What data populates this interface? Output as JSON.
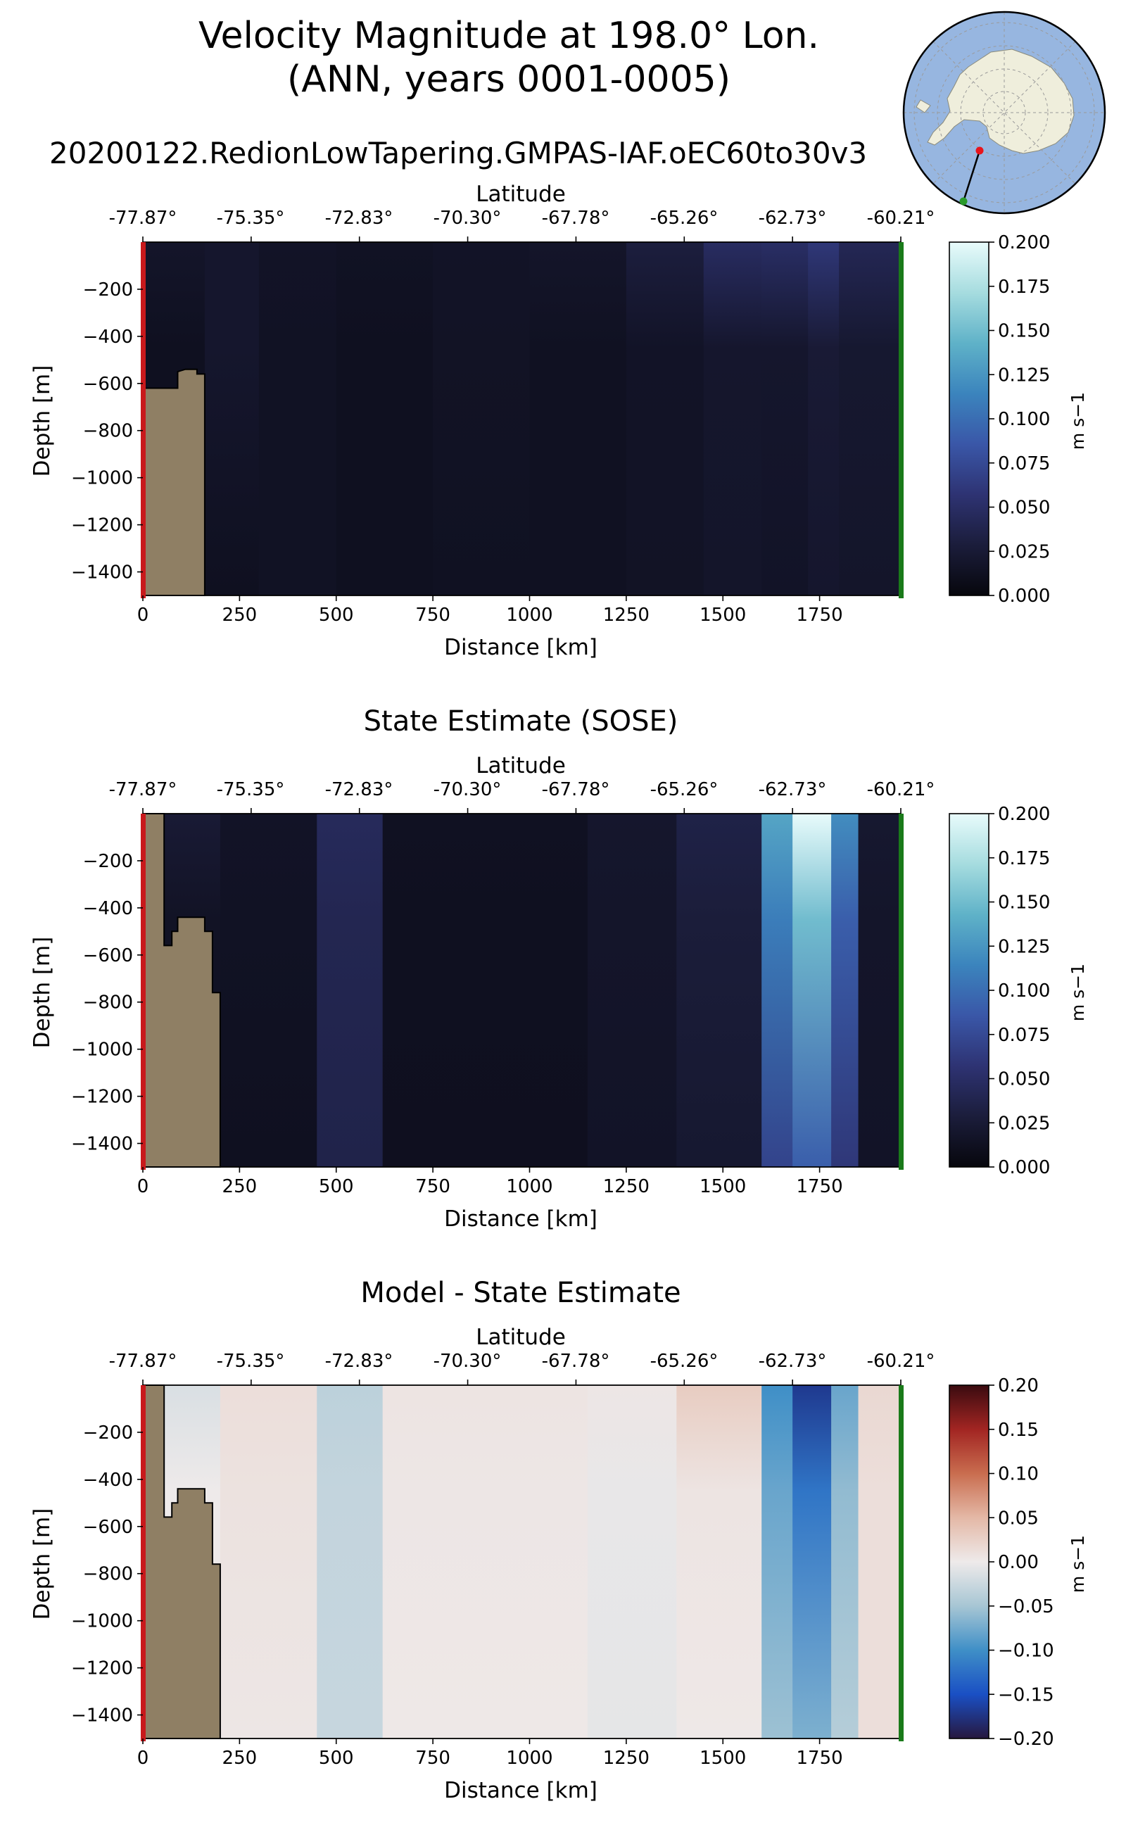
{
  "figure": {
    "title_line1": "Velocity Magnitude at 198.0° Lon.",
    "title_line2": "(ANN, years 0001-0005)",
    "run_name": "20200122.RedionLowTapering.GMPAS-IAF.oEC60to30v3",
    "inset_map": "antarctica-polar-stereographic-map-with-transect"
  },
  "colors": {
    "land": "#8f7f64",
    "start_marker": "#c8191c",
    "end_marker": "#1a7a1a",
    "cmap_velocity": [
      "#07070d",
      "#1b1d3b",
      "#2e3373",
      "#3a57a8",
      "#3b84bd",
      "#5fb2c8",
      "#a6dcdf",
      "#e8fbfb"
    ],
    "cmap_diff": [
      "#27183f",
      "#1a4fc4",
      "#3f8fc7",
      "#a7c6d4",
      "#eeeaea",
      "#e4b8a6",
      "#c96d4f",
      "#a22522",
      "#3a0b10"
    ]
  },
  "chart_data": [
    {
      "type": "heatmap",
      "id": "model",
      "title": "",
      "top_axis_label": "Latitude",
      "lat_ticks": [
        "-77.87°",
        "-75.35°",
        "-72.83°",
        "-70.30°",
        "-67.78°",
        "-65.26°",
        "-62.73°",
        "-60.21°"
      ],
      "lat_tick_distance_km": [
        0,
        280,
        560,
        840,
        1120,
        1400,
        1680,
        1960
      ],
      "xlabel": "Distance [km]",
      "ylabel": "Depth [m]",
      "xlim": [
        0,
        1960
      ],
      "ylim": [
        -1500,
        0
      ],
      "x_ticks": [
        0,
        250,
        500,
        750,
        1000,
        1250,
        1500,
        1750
      ],
      "y_ticks": [
        -200,
        -400,
        -600,
        -800,
        -1000,
        -1200,
        -1400
      ],
      "y_tick_labels": [
        "−200",
        "−400",
        "−600",
        "−800",
        "−1000",
        "−1200",
        "−1400"
      ],
      "colorbar": {
        "min": 0.0,
        "max": 0.2,
        "label": "m s−1",
        "ticks": [
          "0.000",
          "0.025",
          "0.050",
          "0.075",
          "0.100",
          "0.125",
          "0.150",
          "0.175",
          "0.200"
        ],
        "cmap": "velocity"
      },
      "land": [
        [
          0,
          -620
        ],
        [
          90,
          -620
        ],
        [
          90,
          -550
        ],
        [
          110,
          -540
        ],
        [
          140,
          -540
        ],
        [
          140,
          -560
        ],
        [
          160,
          -560
        ],
        [
          160,
          -1500
        ],
        [
          0,
          -1500
        ]
      ],
      "field": [
        {
          "x0": 0,
          "x1": 160,
          "v": 0.012,
          "surf": 0.018,
          "deep": 0.01
        },
        {
          "x0": 160,
          "x1": 300,
          "v": 0.02,
          "surf": 0.02,
          "deep": 0.012
        },
        {
          "x0": 300,
          "x1": 500,
          "v": 0.014,
          "surf": 0.016,
          "deep": 0.014
        },
        {
          "x0": 500,
          "x1": 750,
          "v": 0.012,
          "surf": 0.014,
          "deep": 0.012
        },
        {
          "x0": 750,
          "x1": 1000,
          "v": 0.015,
          "surf": 0.016,
          "deep": 0.013
        },
        {
          "x0": 1000,
          "x1": 1250,
          "v": 0.013,
          "surf": 0.018,
          "deep": 0.013
        },
        {
          "x0": 1250,
          "x1": 1450,
          "v": 0.016,
          "surf": 0.03,
          "deep": 0.015
        },
        {
          "x0": 1450,
          "x1": 1600,
          "v": 0.02,
          "surf": 0.048,
          "deep": 0.018
        },
        {
          "x0": 1600,
          "x1": 1720,
          "v": 0.02,
          "surf": 0.05,
          "deep": 0.016
        },
        {
          "x0": 1720,
          "x1": 1800,
          "v": 0.025,
          "surf": 0.06,
          "deep": 0.02
        },
        {
          "x0": 1800,
          "x1": 1960,
          "v": 0.022,
          "surf": 0.042,
          "deep": 0.018
        }
      ]
    },
    {
      "type": "heatmap",
      "id": "sose",
      "title": "State Estimate (SOSE)",
      "top_axis_label": "Latitude",
      "lat_ticks": [
        "-77.87°",
        "-75.35°",
        "-72.83°",
        "-70.30°",
        "-67.78°",
        "-65.26°",
        "-62.73°",
        "-60.21°"
      ],
      "lat_tick_distance_km": [
        0,
        280,
        560,
        840,
        1120,
        1400,
        1680,
        1960
      ],
      "xlabel": "Distance [km]",
      "ylabel": "Depth [m]",
      "xlim": [
        0,
        1960
      ],
      "ylim": [
        -1500,
        0
      ],
      "x_ticks": [
        0,
        250,
        500,
        750,
        1000,
        1250,
        1500,
        1750
      ],
      "y_ticks": [
        -200,
        -400,
        -600,
        -800,
        -1000,
        -1200,
        -1400
      ],
      "y_tick_labels": [
        "−200",
        "−400",
        "−600",
        "−800",
        "−1000",
        "−1200",
        "−1400"
      ],
      "colorbar": {
        "min": 0.0,
        "max": 0.2,
        "label": "m s−1",
        "ticks": [
          "0.000",
          "0.025",
          "0.050",
          "0.075",
          "0.100",
          "0.125",
          "0.150",
          "0.175",
          "0.200"
        ],
        "cmap": "velocity"
      },
      "land": [
        [
          0,
          0
        ],
        [
          55,
          0
        ],
        [
          55,
          -560
        ],
        [
          75,
          -560
        ],
        [
          75,
          -500
        ],
        [
          90,
          -500
        ],
        [
          90,
          -440
        ],
        [
          160,
          -440
        ],
        [
          160,
          -500
        ],
        [
          180,
          -500
        ],
        [
          180,
          -760
        ],
        [
          200,
          -760
        ],
        [
          200,
          -1500
        ],
        [
          0,
          -1500
        ]
      ],
      "field": [
        {
          "x0": 0,
          "x1": 200,
          "v": 0.015,
          "surf": 0.025,
          "deep": 0.012
        },
        {
          "x0": 200,
          "x1": 450,
          "v": 0.014,
          "surf": 0.016,
          "deep": 0.012
        },
        {
          "x0": 450,
          "x1": 620,
          "v": 0.04,
          "surf": 0.045,
          "deep": 0.036
        },
        {
          "x0": 620,
          "x1": 1150,
          "v": 0.012,
          "surf": 0.013,
          "deep": 0.011
        },
        {
          "x0": 1150,
          "x1": 1380,
          "v": 0.018,
          "surf": 0.02,
          "deep": 0.016
        },
        {
          "x0": 1380,
          "x1": 1600,
          "v": 0.028,
          "surf": 0.035,
          "deep": 0.022
        },
        {
          "x0": 1600,
          "x1": 1680,
          "v": 0.11,
          "surf": 0.135,
          "deep": 0.07
        },
        {
          "x0": 1680,
          "x1": 1780,
          "v": 0.15,
          "surf": 0.2,
          "deep": 0.09
        },
        {
          "x0": 1780,
          "x1": 1850,
          "v": 0.09,
          "surf": 0.12,
          "deep": 0.06
        },
        {
          "x0": 1850,
          "x1": 1960,
          "v": 0.018,
          "surf": 0.022,
          "deep": 0.016
        }
      ]
    },
    {
      "type": "heatmap",
      "id": "diff",
      "title": "Model - State Estimate",
      "top_axis_label": "Latitude",
      "lat_ticks": [
        "-77.87°",
        "-75.35°",
        "-72.83°",
        "-70.30°",
        "-67.78°",
        "-65.26°",
        "-62.73°",
        "-60.21°"
      ],
      "lat_tick_distance_km": [
        0,
        280,
        560,
        840,
        1120,
        1400,
        1680,
        1960
      ],
      "xlabel": "Distance [km]",
      "ylabel": "Depth [m]",
      "xlim": [
        0,
        1960
      ],
      "ylim": [
        -1500,
        0
      ],
      "x_ticks": [
        0,
        250,
        500,
        750,
        1000,
        1250,
        1500,
        1750
      ],
      "y_ticks": [
        -200,
        -400,
        -600,
        -800,
        -1000,
        -1200,
        -1400
      ],
      "y_tick_labels": [
        "−200",
        "−400",
        "−600",
        "−800",
        "−1000",
        "−1200",
        "−1400"
      ],
      "colorbar": {
        "min": -0.2,
        "max": 0.2,
        "label": "m s−1",
        "ticks": [
          "−0.20",
          "−0.15",
          "−0.10",
          "−0.05",
          "0.00",
          "0.05",
          "0.10",
          "0.15",
          "0.20"
        ],
        "cmap": "diff"
      },
      "land": [
        [
          0,
          0
        ],
        [
          55,
          0
        ],
        [
          55,
          -560
        ],
        [
          75,
          -560
        ],
        [
          75,
          -500
        ],
        [
          90,
          -500
        ],
        [
          90,
          -440
        ],
        [
          160,
          -440
        ],
        [
          160,
          -500
        ],
        [
          180,
          -500
        ],
        [
          180,
          -760
        ],
        [
          200,
          -760
        ],
        [
          200,
          -1500
        ],
        [
          0,
          -1500
        ]
      ],
      "field": [
        {
          "x0": 0,
          "x1": 200,
          "v": 0.0,
          "surf": -0.015,
          "deep": 0.0
        },
        {
          "x0": 200,
          "x1": 450,
          "v": 0.008,
          "surf": 0.012,
          "deep": 0.004
        },
        {
          "x0": 450,
          "x1": 620,
          "v": -0.03,
          "surf": -0.035,
          "deep": -0.028
        },
        {
          "x0": 620,
          "x1": 1150,
          "v": 0.004,
          "surf": 0.006,
          "deep": 0.002
        },
        {
          "x0": 1150,
          "x1": 1380,
          "v": -0.004,
          "surf": 0.004,
          "deep": -0.006
        },
        {
          "x0": 1380,
          "x1": 1600,
          "v": 0.006,
          "surf": 0.03,
          "deep": 0.002
        },
        {
          "x0": 1600,
          "x1": 1680,
          "v": -0.08,
          "surf": -0.1,
          "deep": -0.055
        },
        {
          "x0": 1680,
          "x1": 1780,
          "v": -0.12,
          "surf": -0.17,
          "deep": -0.07
        },
        {
          "x0": 1780,
          "x1": 1850,
          "v": -0.06,
          "surf": -0.08,
          "deep": -0.04
        },
        {
          "x0": 1850,
          "x1": 1960,
          "v": 0.012,
          "surf": 0.018,
          "deep": 0.012
        }
      ]
    }
  ]
}
